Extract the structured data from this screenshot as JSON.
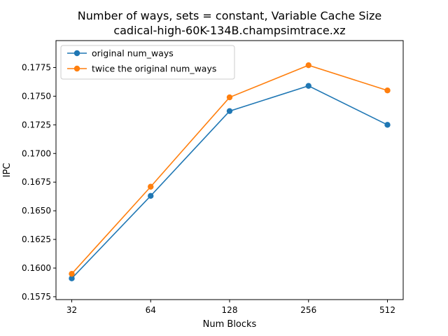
{
  "chart_data": {
    "type": "line",
    "title": "Number of ways, sets = constant, Variable Cache Size",
    "subtitle": "cadical-high-60K-134B.champsimtrace.xz",
    "xlabel": "Num Blocks",
    "ylabel": "IPC",
    "x_scale": "log2",
    "categories": [
      "32",
      "64",
      "128",
      "256",
      "512"
    ],
    "x": [
      32,
      64,
      128,
      256,
      512
    ],
    "y_ticks": [
      "0.1575",
      "0.1600",
      "0.1625",
      "0.1650",
      "0.1675",
      "0.1700",
      "0.1725",
      "0.1750",
      "0.1775"
    ],
    "ylim": [
      0.15725,
      0.17985
    ],
    "grid": false,
    "legend_position": "top-left",
    "series": [
      {
        "name": "original num_ways",
        "color": "#1f77b4",
        "values": [
          0.1591,
          0.1663,
          0.1737,
          0.1759,
          0.1725
        ]
      },
      {
        "name": "twice the original num_ways",
        "color": "#ff7f0e",
        "values": [
          0.1595,
          0.1671,
          0.1749,
          0.1777,
          0.1755
        ]
      }
    ]
  }
}
